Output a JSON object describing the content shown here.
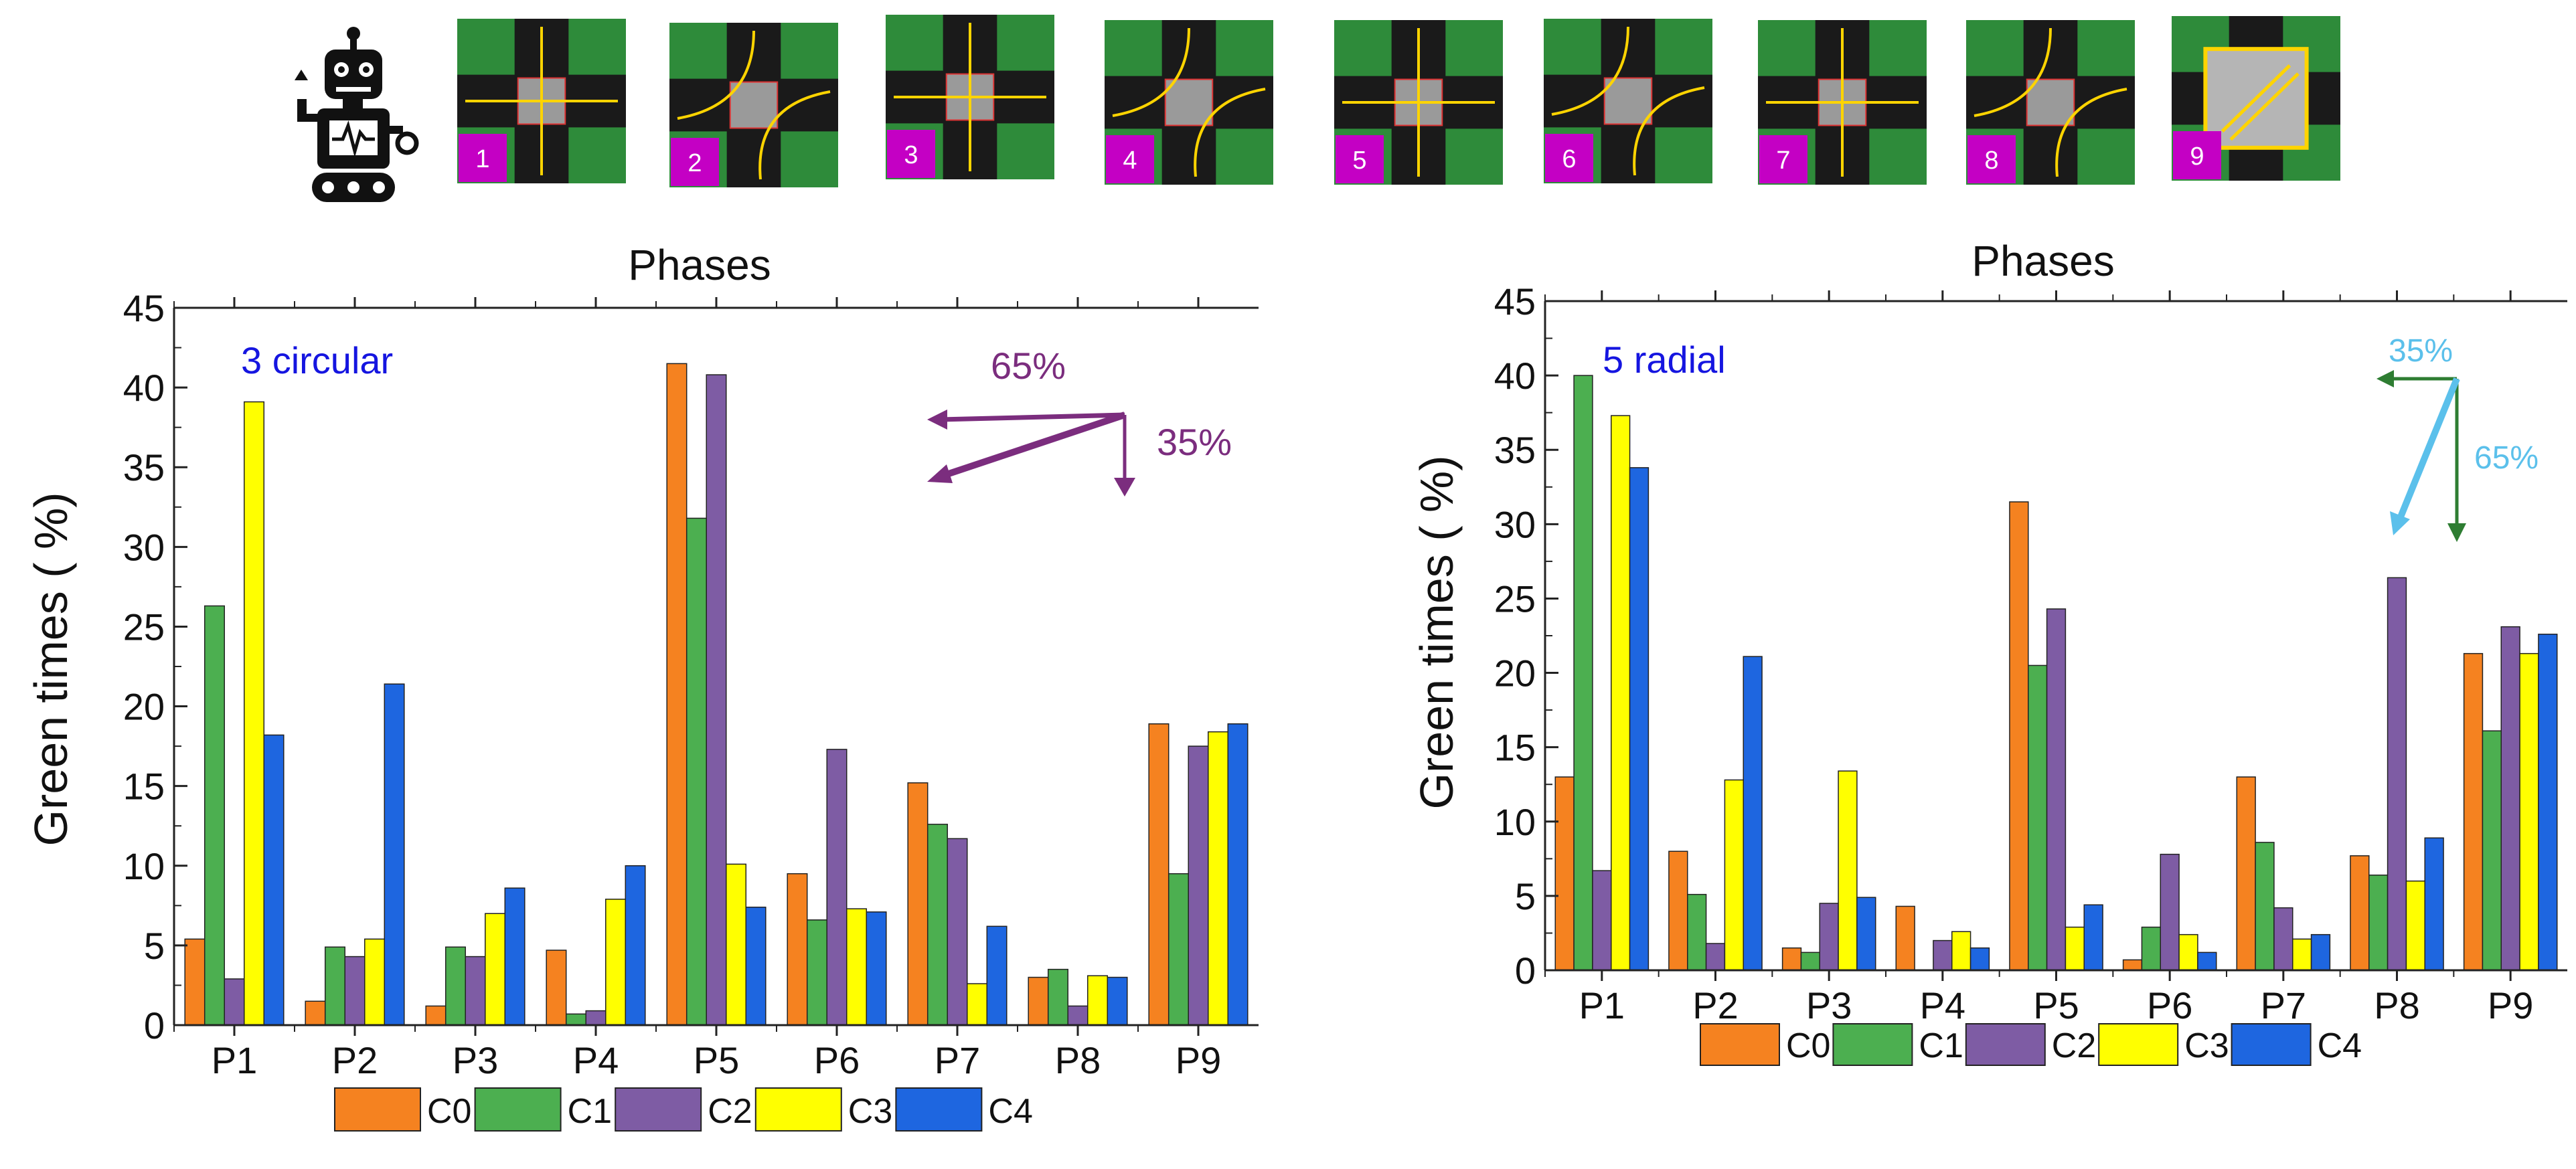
{
  "colors": {
    "C0": "#F58220",
    "C1": "#4CAF50",
    "C2": "#7E5CA4",
    "C3": "#FFFF00",
    "C4": "#1E66E0",
    "annotation_left": "#7B2D7E",
    "annotation_right_a": "#5BC0EB",
    "annotation_right_b": "#2E7D32",
    "label_blue": "#1515E0",
    "phase_badge": "#C400C4",
    "tile_green": "#2E8B3A"
  },
  "icons": [
    "robot-icon",
    "phase-diagram-icon"
  ],
  "phase_icons": [
    "1",
    "2",
    "3",
    "4",
    "5",
    "6",
    "7",
    "8",
    "9"
  ],
  "chart_data": [
    {
      "type": "bar",
      "title": "Phases",
      "label": "3 circular",
      "xlabel": "",
      "ylabel": "Green times ( %)",
      "ylim": [
        0,
        45
      ],
      "yticks": [
        "0",
        "5",
        "10",
        "15",
        "20",
        "25",
        "30",
        "35",
        "40",
        "45"
      ],
      "categories": [
        "P1",
        "P2",
        "P3",
        "P4",
        "P5",
        "P6",
        "P7",
        "P8",
        "P9"
      ],
      "series": [
        {
          "name": "C0",
          "values": [
            5.4,
            1.5,
            1.2,
            4.7,
            41.5,
            9.5,
            15.2,
            3.0,
            18.9
          ]
        },
        {
          "name": "C1",
          "values": [
            26.3,
            4.9,
            4.9,
            0.7,
            31.8,
            6.6,
            12.6,
            3.5,
            9.5
          ]
        },
        {
          "name": "C2",
          "values": [
            2.9,
            4.3,
            4.3,
            0.9,
            40.8,
            17.3,
            11.7,
            1.2,
            17.5
          ]
        },
        {
          "name": "C3",
          "values": [
            39.1,
            5.4,
            7.0,
            7.9,
            10.1,
            7.3,
            2.6,
            3.1,
            18.4
          ]
        },
        {
          "name": "C4",
          "values": [
            18.2,
            21.4,
            8.6,
            10.0,
            7.4,
            7.1,
            6.2,
            3.0,
            18.9
          ]
        }
      ],
      "annotation": {
        "pct_horizontal": "65%",
        "pct_vertical": "35%"
      },
      "legend": [
        "C0",
        "C1",
        "C2",
        "C3",
        "C4"
      ],
      "legend_position": "bottom"
    },
    {
      "type": "bar",
      "title": "Phases",
      "label": "5 radial",
      "xlabel": "",
      "ylabel": "Green times ( %)",
      "ylim": [
        0,
        45
      ],
      "yticks": [
        "0",
        "5",
        "10",
        "15",
        "20",
        "25",
        "30",
        "35",
        "40",
        "45"
      ],
      "categories": [
        "P1",
        "P2",
        "P3",
        "P4",
        "P5",
        "P6",
        "P7",
        "P8",
        "P9"
      ],
      "series": [
        {
          "name": "C0",
          "values": [
            13.0,
            8.0,
            1.5,
            4.3,
            31.5,
            0.7,
            13.0,
            7.7,
            21.3
          ]
        },
        {
          "name": "C1",
          "values": [
            40.0,
            5.1,
            1.2,
            0.0,
            20.5,
            2.9,
            8.6,
            6.4,
            16.1
          ]
        },
        {
          "name": "C2",
          "values": [
            6.7,
            1.8,
            4.5,
            2.0,
            24.3,
            7.8,
            4.2,
            26.4,
            23.1
          ]
        },
        {
          "name": "C3",
          "values": [
            37.3,
            12.8,
            13.4,
            2.6,
            2.9,
            2.4,
            2.1,
            6.0,
            21.3
          ]
        },
        {
          "name": "C4",
          "values": [
            33.8,
            21.1,
            4.9,
            1.5,
            4.4,
            1.2,
            2.4,
            8.9,
            22.6
          ]
        }
      ],
      "annotation": {
        "pct_horizontal": "35%",
        "pct_vertical": "65%"
      },
      "legend": [
        "C0",
        "C1",
        "C2",
        "C3",
        "C4"
      ],
      "legend_position": "bottom"
    }
  ]
}
